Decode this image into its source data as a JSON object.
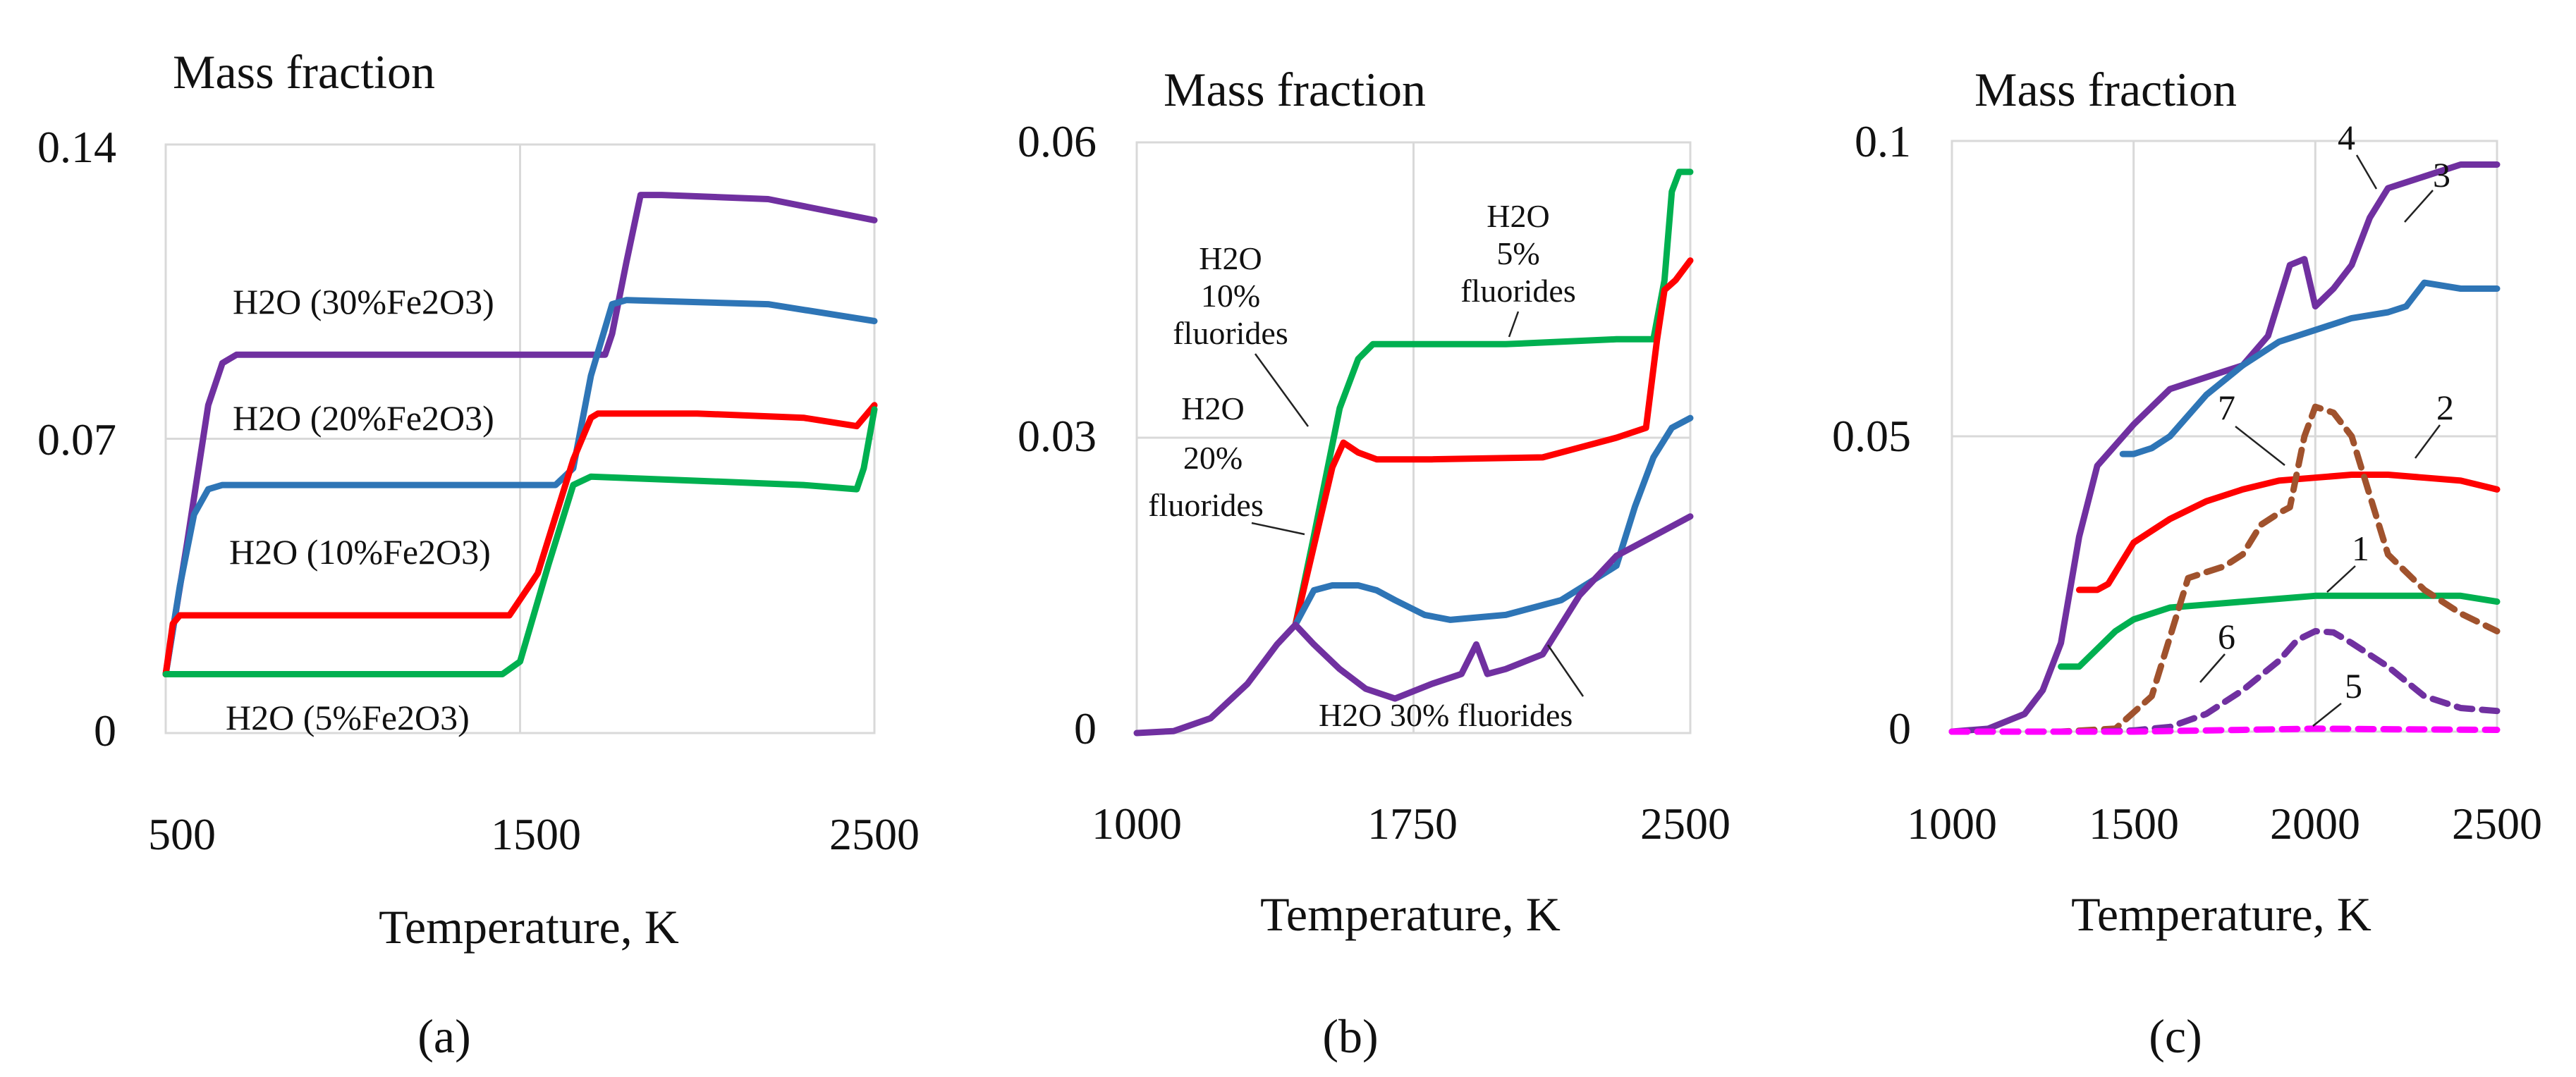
{
  "chart_data": [
    {
      "panel": "a",
      "type": "line",
      "title": "Mass fraction",
      "xlabel": "Temperature, K",
      "ylabel": "Mass fraction",
      "panel_label": "(a)",
      "xlim": [
        500,
        2500
      ],
      "ylim": [
        0,
        0.14
      ],
      "xticks": [
        "500",
        "1500",
        "2500"
      ],
      "yticks": [
        "0",
        "0.07",
        "0.14"
      ],
      "xtick_values": [
        500,
        1500,
        2500
      ],
      "ytick_values": [
        0,
        0.07,
        0.14
      ],
      "grid": true,
      "series": [
        {
          "name": "H2O (30%Fe2O3)",
          "color": "#7030A0",
          "x": [
            500,
            560,
            620,
            660,
            700,
            900,
            1200,
            1740,
            1760,
            1800,
            1840,
            1900,
            2200,
            2500
          ],
          "y": [
            0.014,
            0.045,
            0.078,
            0.088,
            0.09,
            0.09,
            0.09,
            0.09,
            0.095,
            0.112,
            0.128,
            0.128,
            0.127,
            0.122
          ]
        },
        {
          "name": "H2O (20%Fe2O3)",
          "color": "#2E75B6",
          "x": [
            500,
            540,
            580,
            620,
            660,
            900,
            1200,
            1600,
            1650,
            1700,
            1760,
            1800,
            2200,
            2500
          ],
          "y": [
            0.014,
            0.035,
            0.052,
            0.058,
            0.059,
            0.059,
            0.059,
            0.059,
            0.063,
            0.085,
            0.102,
            0.103,
            0.102,
            0.098
          ]
        },
        {
          "name": "H2O (10%Fe2O3)",
          "color": "#FF0000",
          "x": [
            500,
            520,
            540,
            600,
            900,
            1200,
            1470,
            1550,
            1650,
            1700,
            1720,
            2000,
            2300,
            2450,
            2500
          ],
          "y": [
            0.014,
            0.026,
            0.028,
            0.028,
            0.028,
            0.028,
            0.028,
            0.038,
            0.065,
            0.075,
            0.076,
            0.076,
            0.075,
            0.073,
            0.078
          ]
        },
        {
          "name": "H2O (5%Fe2O3)",
          "color": "#00B050",
          "x": [
            500,
            600,
            900,
            1200,
            1450,
            1500,
            1580,
            1650,
            1700,
            2000,
            2300,
            2450,
            2470,
            2500
          ],
          "y": [
            0.014,
            0.014,
            0.014,
            0.014,
            0.014,
            0.017,
            0.04,
            0.059,
            0.061,
            0.06,
            0.059,
            0.058,
            0.063,
            0.077
          ]
        }
      ],
      "annotations": [
        "H2O (30%Fe2O3)",
        "H2O (20%Fe2O3)",
        "H2O (10%Fe2O3)",
        "H2O (5%Fe2O3)"
      ]
    },
    {
      "panel": "b",
      "type": "line",
      "title": "Mass fraction",
      "xlabel": "Temperature, K",
      "ylabel": "Mass fraction",
      "panel_label": "(b)",
      "xlim": [
        1000,
        2500
      ],
      "ylim": [
        0,
        0.06
      ],
      "xticks": [
        "1000",
        "1750",
        "2500"
      ],
      "yticks": [
        "0",
        "0.03",
        "0.06"
      ],
      "xtick_values": [
        1000,
        1750,
        2500
      ],
      "ytick_values": [
        0,
        0.03,
        0.06
      ],
      "grid": true,
      "series": [
        {
          "name": "H2O 5% fluorides",
          "color": "#00B050",
          "x": [
            1430,
            1480,
            1550,
            1600,
            1640,
            1700,
            2000,
            2300,
            2400,
            2430,
            2450,
            2470,
            2500
          ],
          "y": [
            0.011,
            0.02,
            0.033,
            0.038,
            0.0395,
            0.0395,
            0.0395,
            0.04,
            0.04,
            0.046,
            0.055,
            0.057,
            0.057
          ]
        },
        {
          "name": "H2O 10% fluorides",
          "color": "#FF0000",
          "x": [
            1430,
            1480,
            1530,
            1560,
            1600,
            1650,
            1800,
            2100,
            2300,
            2380,
            2410,
            2430,
            2460,
            2500
          ],
          "y": [
            0.011,
            0.019,
            0.027,
            0.0295,
            0.0285,
            0.0278,
            0.0278,
            0.028,
            0.03,
            0.031,
            0.04,
            0.045,
            0.046,
            0.048
          ]
        },
        {
          "name": "H2O 20% fluorides",
          "color": "#2E75B6",
          "x": [
            1430,
            1480,
            1530,
            1600,
            1650,
            1700,
            1780,
            1850,
            2000,
            2150,
            2300,
            2350,
            2400,
            2450,
            2500
          ],
          "y": [
            0.011,
            0.0145,
            0.015,
            0.015,
            0.0145,
            0.0135,
            0.012,
            0.0115,
            0.012,
            0.0135,
            0.017,
            0.023,
            0.028,
            0.031,
            0.032
          ]
        },
        {
          "name": "H2O 30% fluorides",
          "color": "#7030A0",
          "x": [
            1000,
            1100,
            1200,
            1300,
            1380,
            1430,
            1480,
            1550,
            1620,
            1700,
            1800,
            1880,
            1920,
            1950,
            2000,
            2100,
            2200,
            2300,
            2400,
            2500
          ],
          "y": [
            0.0,
            0.0002,
            0.0015,
            0.005,
            0.009,
            0.011,
            0.009,
            0.0065,
            0.0045,
            0.0035,
            0.005,
            0.006,
            0.009,
            0.006,
            0.0065,
            0.008,
            0.014,
            0.018,
            0.02,
            0.022
          ]
        }
      ],
      "annotations": [
        "H2O",
        "10%",
        "fluorides",
        "H2O",
        "5%",
        "fluorides",
        "H2O",
        "20%",
        "fluorides",
        "H2O 30% fluorides"
      ]
    },
    {
      "panel": "c",
      "type": "line",
      "title": "Mass fraction",
      "xlabel": "Temperature, K",
      "ylabel": "Mass fraction",
      "panel_label": "(c)",
      "xlim": [
        1000,
        2500
      ],
      "ylim": [
        0,
        0.1
      ],
      "xticks": [
        "1000",
        "1500",
        "2000",
        "2500"
      ],
      "yticks": [
        "0",
        "0.05",
        "0.1"
      ],
      "xtick_values": [
        1000,
        1500,
        2000,
        2500
      ],
      "ytick_values": [
        0,
        0.05,
        0.1
      ],
      "grid": true,
      "series": [
        {
          "name": "4",
          "color": "#7030A0",
          "dash": false,
          "x": [
            1000,
            1100,
            1200,
            1250,
            1300,
            1350,
            1400,
            1500,
            1600,
            1700,
            1800,
            1870,
            1930,
            1970,
            2000,
            2050,
            2100,
            2150,
            2200,
            2300,
            2400,
            2500
          ],
          "y": [
            0.0,
            0.0005,
            0.003,
            0.007,
            0.015,
            0.033,
            0.045,
            0.052,
            0.058,
            0.06,
            0.062,
            0.067,
            0.079,
            0.08,
            0.072,
            0.075,
            0.079,
            0.087,
            0.092,
            0.094,
            0.096,
            0.096
          ]
        },
        {
          "name": "3",
          "color": "#2E75B6",
          "dash": false,
          "x": [
            1470,
            1500,
            1550,
            1600,
            1700,
            1800,
            1900,
            2000,
            2100,
            2200,
            2250,
            2300,
            2400,
            2500
          ],
          "y": [
            0.047,
            0.047,
            0.048,
            0.05,
            0.057,
            0.062,
            0.066,
            0.068,
            0.07,
            0.071,
            0.072,
            0.076,
            0.075,
            0.075
          ]
        },
        {
          "name": "2",
          "color": "#FF0000",
          "dash": false,
          "x": [
            1350,
            1400,
            1430,
            1500,
            1600,
            1700,
            1800,
            1900,
            2000,
            2100,
            2200,
            2300,
            2400,
            2500
          ],
          "y": [
            0.024,
            0.024,
            0.025,
            0.032,
            0.036,
            0.039,
            0.041,
            0.0425,
            0.043,
            0.0435,
            0.0435,
            0.043,
            0.0425,
            0.041
          ]
        },
        {
          "name": "1",
          "color": "#00B050",
          "dash": false,
          "x": [
            1300,
            1350,
            1400,
            1450,
            1500,
            1600,
            1700,
            1800,
            1900,
            2000,
            2100,
            2200,
            2300,
            2400,
            2500
          ],
          "y": [
            0.011,
            0.011,
            0.014,
            0.017,
            0.019,
            0.021,
            0.0215,
            0.022,
            0.0225,
            0.023,
            0.023,
            0.023,
            0.023,
            0.023,
            0.022
          ]
        },
        {
          "name": "7",
          "color": "#A0522D",
          "dash": true,
          "x": [
            1000,
            1300,
            1450,
            1550,
            1620,
            1650,
            1700,
            1750,
            1800,
            1850,
            1900,
            1930,
            1970,
            2000,
            2050,
            2100,
            2150,
            2200,
            2300,
            2400,
            2500
          ],
          "y": [
            0.0,
            0.0,
            0.0005,
            0.006,
            0.02,
            0.026,
            0.027,
            0.028,
            0.03,
            0.035,
            0.037,
            0.038,
            0.05,
            0.055,
            0.054,
            0.05,
            0.04,
            0.03,
            0.024,
            0.02,
            0.017
          ]
        },
        {
          "name": "6",
          "color": "#7030A0",
          "dash": true,
          "x": [
            1000,
            1400,
            1500,
            1600,
            1700,
            1800,
            1900,
            1950,
            2000,
            2050,
            2100,
            2200,
            2300,
            2400,
            2500
          ],
          "y": [
            0.0,
            0.0,
            0.0002,
            0.0008,
            0.003,
            0.007,
            0.012,
            0.0155,
            0.017,
            0.0168,
            0.015,
            0.011,
            0.006,
            0.004,
            0.0035
          ]
        },
        {
          "name": "5",
          "color": "#FF00FF",
          "dash": true,
          "x": [
            1000,
            1500,
            1800,
            2000,
            2200,
            2500
          ],
          "y": [
            0.0,
            0.0,
            0.0003,
            0.0005,
            0.0004,
            0.0003
          ]
        }
      ],
      "annotations": [
        "4",
        "3",
        "2",
        "7",
        "1",
        "6",
        "5"
      ]
    }
  ]
}
